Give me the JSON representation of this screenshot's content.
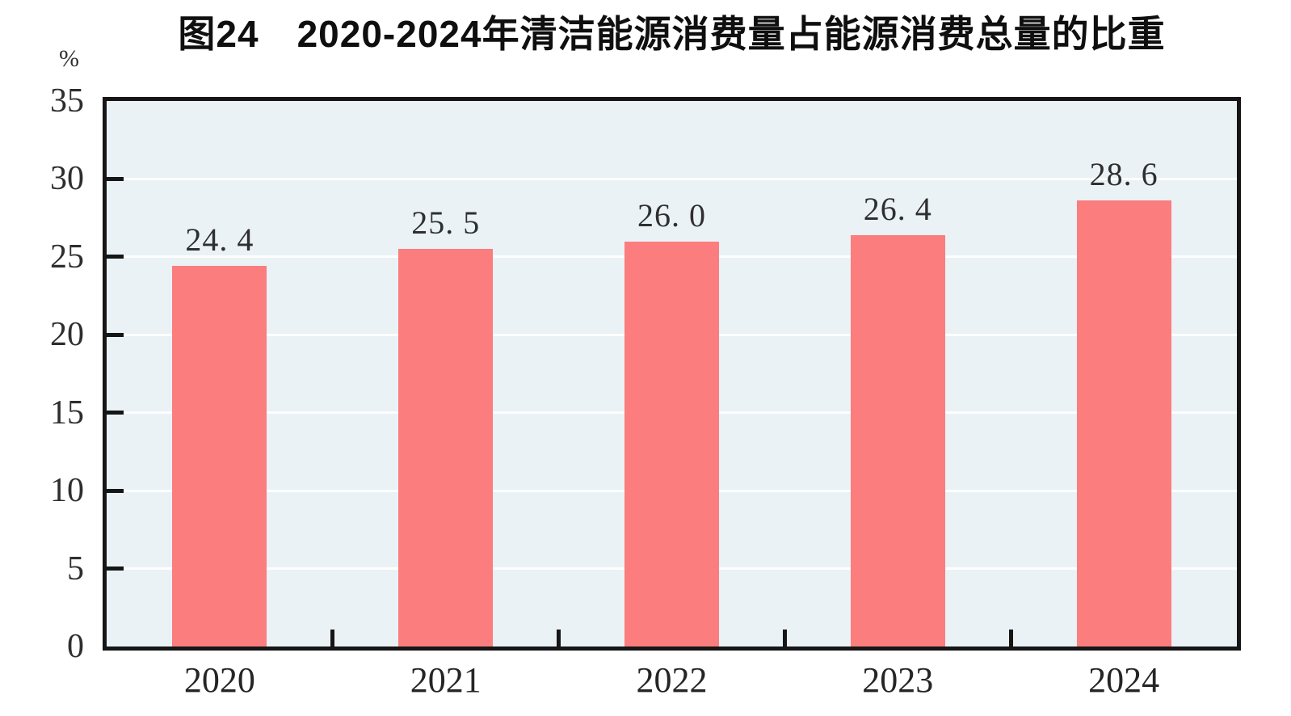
{
  "figure": {
    "title": "图24　2020-2024年清洁能源消费量占能源消费总量的比重",
    "unit_label": "%"
  },
  "chart_data": {
    "type": "bar",
    "title": "图24　2020-2024年清洁能源消费量占能源消费总量的比重",
    "categories": [
      "2020",
      "2021",
      "2022",
      "2023",
      "2024"
    ],
    "values": [
      24.4,
      25.5,
      26.0,
      26.4,
      28.6
    ],
    "bar_labels": [
      "24. 4",
      "25. 5",
      "26. 0",
      "26. 4",
      "28. 6"
    ],
    "xlabel": "",
    "ylabel": "%",
    "ylim": [
      0,
      35
    ],
    "ytick_step": 5,
    "yticks": [
      0,
      5,
      10,
      15,
      20,
      25,
      30,
      35
    ],
    "grid": "horizontal-white-lines-every-5",
    "legend": "none",
    "colors": {
      "bar": "#fb7d7e",
      "plot_background": "#eaf2f6",
      "gridline": "#fdfeff",
      "axis": "#161616",
      "tick_text": "#2e2e2e",
      "title_text": "#0f0f0f"
    }
  }
}
